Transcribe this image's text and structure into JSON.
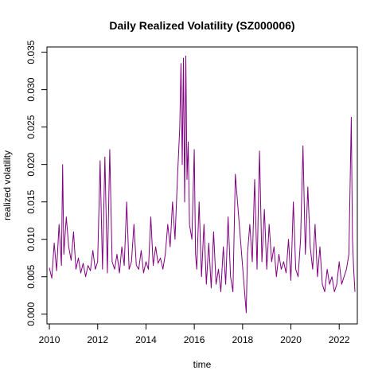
{
  "chart_data": {
    "type": "line",
    "title": "Daily Realized Volatility (SZ000006)",
    "xlabel": "time",
    "ylabel": "realized volatility",
    "x_ticks": [
      "2010",
      "2012",
      "2014",
      "2016",
      "2018",
      "2020",
      "2022"
    ],
    "y_ticks": [
      "0.000",
      "0.005",
      "0.010",
      "0.015",
      "0.020",
      "0.025",
      "0.030",
      "0.035"
    ],
    "xlim": [
      2009.9,
      2022.75
    ],
    "ylim": [
      -0.0013,
      0.0357
    ],
    "grid": false,
    "legend": "none",
    "line_color": "#800080",
    "series": [
      {
        "x": [
          2010.0,
          2010.1,
          2010.2,
          2010.3,
          2010.4,
          2010.5,
          2010.55,
          2010.6,
          2010.7,
          2010.8,
          2010.9,
          2011.0,
          2011.1,
          2011.2,
          2011.3,
          2011.4,
          2011.5,
          2011.6,
          2011.7,
          2011.8,
          2011.9,
          2012.0,
          2012.1,
          2012.2,
          2012.3,
          2012.4,
          2012.5,
          2012.6,
          2012.7,
          2012.8,
          2012.9,
          2013.0,
          2013.1,
          2013.2,
          2013.3,
          2013.4,
          2013.5,
          2013.6,
          2013.7,
          2013.8,
          2013.9,
          2014.0,
          2014.1,
          2014.2,
          2014.3,
          2014.4,
          2014.5,
          2014.6,
          2014.7,
          2014.8,
          2014.9,
          2015.0,
          2015.1,
          2015.2,
          2015.3,
          2015.4,
          2015.45,
          2015.5,
          2015.55,
          2015.6,
          2015.65,
          2015.7,
          2015.75,
          2015.8,
          2015.9,
          2016.0,
          2016.05,
          2016.1,
          2016.2,
          2016.3,
          2016.4,
          2016.5,
          2016.6,
          2016.7,
          2016.8,
          2016.9,
          2017.0,
          2017.1,
          2017.2,
          2017.3,
          2017.4,
          2017.5,
          2017.6,
          2017.7,
          2018.15,
          2018.2,
          2018.3,
          2018.4,
          2018.5,
          2018.6,
          2018.7,
          2018.8,
          2018.9,
          2019.0,
          2019.1,
          2019.2,
          2019.3,
          2019.4,
          2019.5,
          2019.6,
          2019.7,
          2019.8,
          2019.9,
          2020.0,
          2020.1,
          2020.2,
          2020.3,
          2020.4,
          2020.5,
          2020.6,
          2020.7,
          2020.8,
          2020.9,
          2021.0,
          2021.1,
          2021.2,
          2021.3,
          2021.4,
          2021.5,
          2021.6,
          2021.7,
          2021.8,
          2021.9,
          2022.0,
          2022.1,
          2022.2,
          2022.3,
          2022.4,
          2022.5,
          2022.55,
          2022.6,
          2022.65
        ],
        "y": [
          0.0062,
          0.0048,
          0.0095,
          0.0058,
          0.012,
          0.0065,
          0.02,
          0.008,
          0.013,
          0.009,
          0.0072,
          0.011,
          0.006,
          0.0075,
          0.0055,
          0.0068,
          0.005,
          0.0065,
          0.0058,
          0.0085,
          0.006,
          0.007,
          0.0205,
          0.006,
          0.021,
          0.0055,
          0.022,
          0.007,
          0.006,
          0.008,
          0.0055,
          0.009,
          0.0065,
          0.015,
          0.006,
          0.007,
          0.012,
          0.0065,
          0.006,
          0.0085,
          0.0055,
          0.007,
          0.006,
          0.013,
          0.0065,
          0.009,
          0.0068,
          0.0075,
          0.006,
          0.008,
          0.012,
          0.009,
          0.015,
          0.01,
          0.018,
          0.025,
          0.0335,
          0.02,
          0.0342,
          0.015,
          0.0345,
          0.018,
          0.023,
          0.012,
          0.01,
          0.022,
          0.008,
          0.006,
          0.015,
          0.005,
          0.012,
          0.004,
          0.0095,
          0.0035,
          0.011,
          0.004,
          0.006,
          0.003,
          0.009,
          0.004,
          0.013,
          0.005,
          0.003,
          0.0187,
          0.0002,
          0.008,
          0.012,
          0.007,
          0.018,
          0.006,
          0.0218,
          0.007,
          0.014,
          0.006,
          0.012,
          0.007,
          0.009,
          0.005,
          0.008,
          0.006,
          0.007,
          0.0055,
          0.01,
          0.0045,
          0.015,
          0.006,
          0.005,
          0.01,
          0.0225,
          0.008,
          0.017,
          0.009,
          0.006,
          0.012,
          0.005,
          0.009,
          0.004,
          0.003,
          0.006,
          0.004,
          0.005,
          0.003,
          0.004,
          0.007,
          0.004,
          0.005,
          0.006,
          0.008,
          0.0263,
          0.01,
          0.006,
          0.003
        ]
      }
    ]
  }
}
